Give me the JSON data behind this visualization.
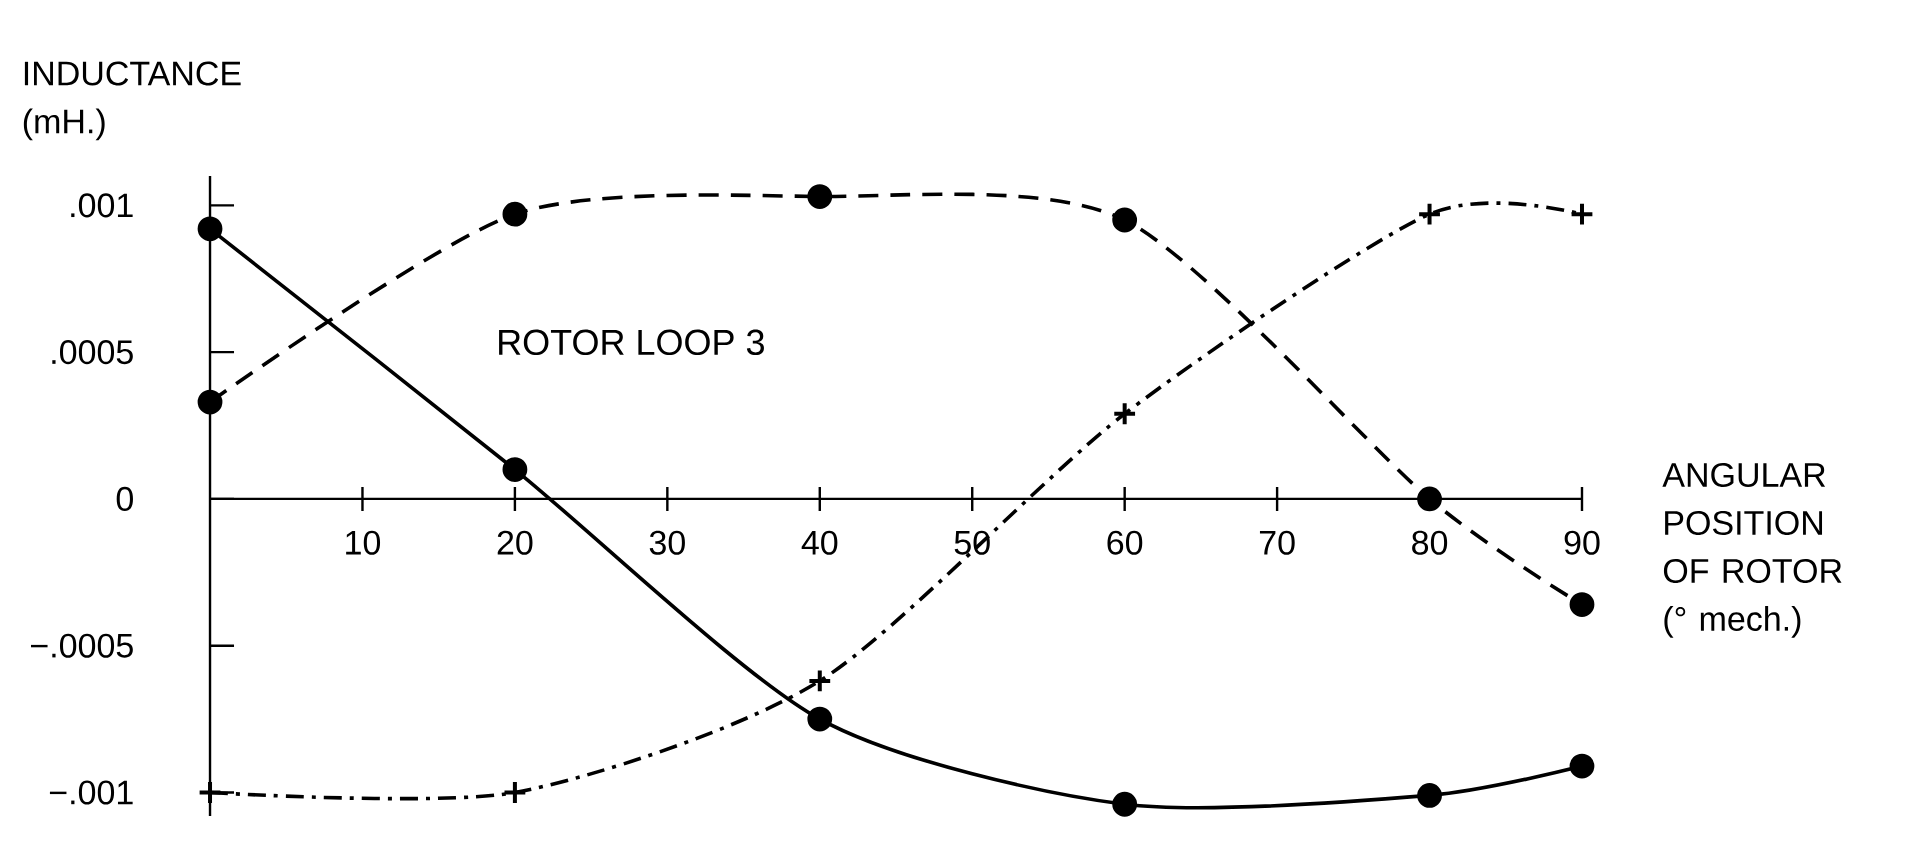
{
  "chart_data": {
    "type": "line",
    "ylabel": "INDUCTANCE\n(mH.)",
    "xlabel": "ANGULAR POSITION OF ROTOR (° mech.)",
    "annotations": [
      "ROTOR LOOP 3"
    ],
    "x": [
      0,
      20,
      40,
      60,
      80,
      90
    ],
    "series": [
      {
        "color": "#000000",
        "line_style": "solid",
        "marker": "circle",
        "values": [
          0.00092,
          0.0001,
          -0.00075,
          -0.00104,
          -0.00101,
          -0.00091
        ]
      },
      {
        "color": "#000000",
        "line_style": "dashed",
        "marker": "circle",
        "values": [
          0.00033,
          0.00097,
          0.00103,
          0.00095,
          0.0,
          -0.00036
        ]
      },
      {
        "color": "#000000",
        "line_style": "dashdot",
        "marker": "cross",
        "values": [
          -0.001,
          -0.001,
          -0.00062,
          0.00029,
          0.00097,
          0.00097
        ]
      }
    ],
    "xlim": [
      0,
      90
    ],
    "ylim": [
      -0.00108,
      0.0011
    ],
    "xticks": [
      10,
      20,
      30,
      40,
      50,
      60,
      70,
      80,
      90
    ],
    "yticks": [
      {
        "value": 0.001,
        "label": ".001"
      },
      {
        "value": 0.0005,
        "label": ".0005"
      },
      {
        "value": 0,
        "label": "0"
      },
      {
        "value": -0.0005,
        "label": "−.0005"
      },
      {
        "value": -0.001,
        "label": "−.001"
      }
    ],
    "grid": false
  }
}
